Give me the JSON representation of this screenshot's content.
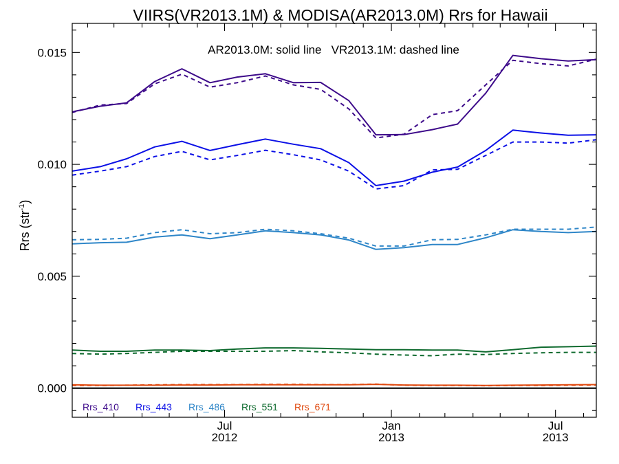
{
  "chart_data": {
    "type": "line",
    "title": "VIIRS(VR2013.1M) & MODISA(AR2013.0M)  Rrs for Hawaii",
    "annotation": "AR2013.0M: solid line   VR2013.1M: dashed line",
    "ylabel_main": "Rrs (str",
    "ylabel_sup": "-1",
    "ylabel_end": ")",
    "xlabel": "",
    "xlim": [
      "2012-01-15",
      "2013-08-15"
    ],
    "ylim": [
      -0.0013,
      0.0163
    ],
    "yticks": [
      {
        "value": 0.0,
        "label": "0.000"
      },
      {
        "value": 0.005,
        "label": "0.005"
      },
      {
        "value": 0.01,
        "label": "0.010"
      },
      {
        "value": 0.015,
        "label": "0.015"
      }
    ],
    "xticks": [
      {
        "date": "2012-07-01",
        "line1": "Jul",
        "line2": "2012"
      },
      {
        "date": "2013-01-01",
        "line1": "Jan",
        "line2": "2013"
      },
      {
        "date": "2013-07-01",
        "line1": "Jul",
        "line2": "2013"
      }
    ],
    "x": [
      "2012-01-15",
      "2012-02-15",
      "2012-03-15",
      "2012-04-15",
      "2012-05-15",
      "2012-06-15",
      "2012-07-15",
      "2012-08-15",
      "2012-09-15",
      "2012-10-15",
      "2012-11-15",
      "2012-12-15",
      "2013-01-15",
      "2013-02-15",
      "2013-03-15",
      "2013-04-15",
      "2013-05-15",
      "2013-06-15",
      "2013-07-15",
      "2013-08-15"
    ],
    "legend_position": "bottom-left",
    "series": [
      {
        "name": "Rrs_410",
        "color": "#3d0a8a",
        "solid": [
          0.01235,
          0.0126,
          0.01275,
          0.0137,
          0.01427,
          0.01365,
          0.0139,
          0.01405,
          0.01365,
          0.01366,
          0.01285,
          0.01132,
          0.01133,
          0.01155,
          0.0118,
          0.01318,
          0.01487,
          0.01472,
          0.01462,
          0.01468
        ],
        "dashed": [
          0.01232,
          0.01265,
          0.01272,
          0.0136,
          0.01403,
          0.01345,
          0.01365,
          0.01395,
          0.01355,
          0.01335,
          0.01248,
          0.01118,
          0.01135,
          0.01222,
          0.0124,
          0.01355,
          0.01465,
          0.0145,
          0.0144,
          0.0147
        ]
      },
      {
        "name": "Rrs_443",
        "color": "#0b10e6",
        "solid": [
          0.0097,
          0.0099,
          0.01025,
          0.01078,
          0.01103,
          0.01062,
          0.01088,
          0.01113,
          0.0109,
          0.0107,
          0.01008,
          0.00905,
          0.00925,
          0.00965,
          0.00988,
          0.01062,
          0.01153,
          0.0114,
          0.0113,
          0.01132
        ],
        "dashed": [
          0.00952,
          0.0097,
          0.0099,
          0.01035,
          0.01058,
          0.0102,
          0.0104,
          0.01063,
          0.01043,
          0.0102,
          0.0097,
          0.0089,
          0.00905,
          0.00975,
          0.00978,
          0.0104,
          0.011,
          0.011,
          0.01095,
          0.0111
        ]
      },
      {
        "name": "Rrs_486",
        "color": "#2e86c8",
        "solid": [
          0.00645,
          0.0065,
          0.00652,
          0.00675,
          0.00685,
          0.00668,
          0.00685,
          0.00703,
          0.00695,
          0.00685,
          0.00662,
          0.0062,
          0.00628,
          0.00642,
          0.00642,
          0.00672,
          0.00708,
          0.007,
          0.00695,
          0.007
        ],
        "dashed": [
          0.00663,
          0.00665,
          0.0067,
          0.00695,
          0.00708,
          0.0069,
          0.00695,
          0.0071,
          0.00703,
          0.0069,
          0.0067,
          0.00635,
          0.00635,
          0.00663,
          0.00665,
          0.00685,
          0.0071,
          0.0071,
          0.0071,
          0.0072
        ]
      },
      {
        "name": "Rrs_551",
        "color": "#0e6a2e",
        "solid": [
          0.0017,
          0.00165,
          0.00165,
          0.0017,
          0.0017,
          0.00168,
          0.00175,
          0.0018,
          0.0018,
          0.00178,
          0.00175,
          0.00172,
          0.00172,
          0.0017,
          0.0017,
          0.00162,
          0.00172,
          0.00183,
          0.00185,
          0.00188
        ],
        "dashed": [
          0.00155,
          0.00152,
          0.00155,
          0.0016,
          0.00165,
          0.00165,
          0.00165,
          0.00165,
          0.00168,
          0.00162,
          0.00158,
          0.00152,
          0.00148,
          0.00145,
          0.00152,
          0.0015,
          0.00155,
          0.00158,
          0.0016,
          0.0016
        ]
      },
      {
        "name": "Rrs_671",
        "color": "#e04a10",
        "solid": [
          0.00015,
          0.00013,
          0.00013,
          0.00013,
          0.00014,
          0.00014,
          0.00015,
          0.00015,
          0.00015,
          0.00015,
          0.00015,
          0.00017,
          0.00014,
          0.00013,
          0.00013,
          0.00012,
          0.00013,
          0.00014,
          0.00015,
          0.00016
        ],
        "dashed": [
          0.00012,
          0.00012,
          0.00013,
          0.00015,
          0.00016,
          0.00016,
          0.00016,
          0.00017,
          0.00017,
          0.00016,
          0.00016,
          0.00018,
          0.00013,
          0.00012,
          0.00012,
          0.00011,
          0.00012,
          0.00012,
          0.00013,
          0.00014
        ]
      }
    ]
  }
}
